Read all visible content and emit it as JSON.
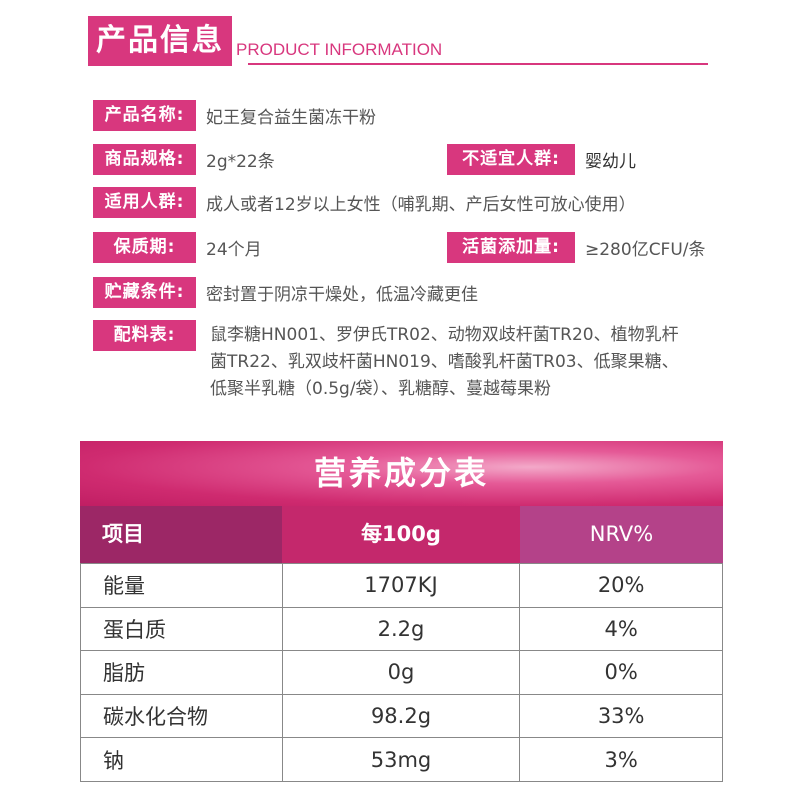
{
  "header": {
    "title": "产品信息",
    "subtitle": "PRODUCT INFORMATION"
  },
  "info": {
    "name_label": "产品名称:",
    "name_value": "妃王复合益生菌冻干粉",
    "spec_label": "商品规格:",
    "spec_value": "2g*22条",
    "unsuitable_label": "不适宜人群:",
    "unsuitable_value": "婴幼儿",
    "suitable_label": "适用人群:",
    "suitable_value": "成人或者12岁以上女性（哺乳期、产后女性可放心使用）",
    "shelf_label": "保质期:",
    "shelf_value": "24个月",
    "live_label": "活菌添加量:",
    "live_value": "≥280亿CFU/条",
    "storage_label": "贮藏条件:",
    "storage_value": "密封置于阴凉干燥处，低温冷藏更佳",
    "ingredients_label": "配料表:",
    "ingredients_lines": [
      "鼠李糖HN001、罗伊氏TR02、动物双歧杆菌TR20、植物乳杆",
      "菌TR22、乳双歧杆菌HN019、嗜酸乳杆菌TR03、低聚果糖、",
      "低聚半乳糖（0.5g/袋）、乳糖醇、蔓越莓果粉"
    ]
  },
  "nutrition": {
    "title": "营养成分表",
    "headers": [
      "项目",
      "每100g",
      "NRV%"
    ],
    "rows": [
      [
        "能量",
        "1707KJ",
        "20%"
      ],
      [
        "蛋白质",
        "2.2g",
        "4%"
      ],
      [
        "脂肪",
        "0g",
        "0%"
      ],
      [
        "碳水化合物",
        "98.2g",
        "33%"
      ],
      [
        "钠",
        "53mg",
        "3%"
      ]
    ]
  },
  "colors": {
    "accent": "#d8377e",
    "header_col1": "#9c2766",
    "header_col2": "#c4286c",
    "header_col3": "#b44289"
  }
}
